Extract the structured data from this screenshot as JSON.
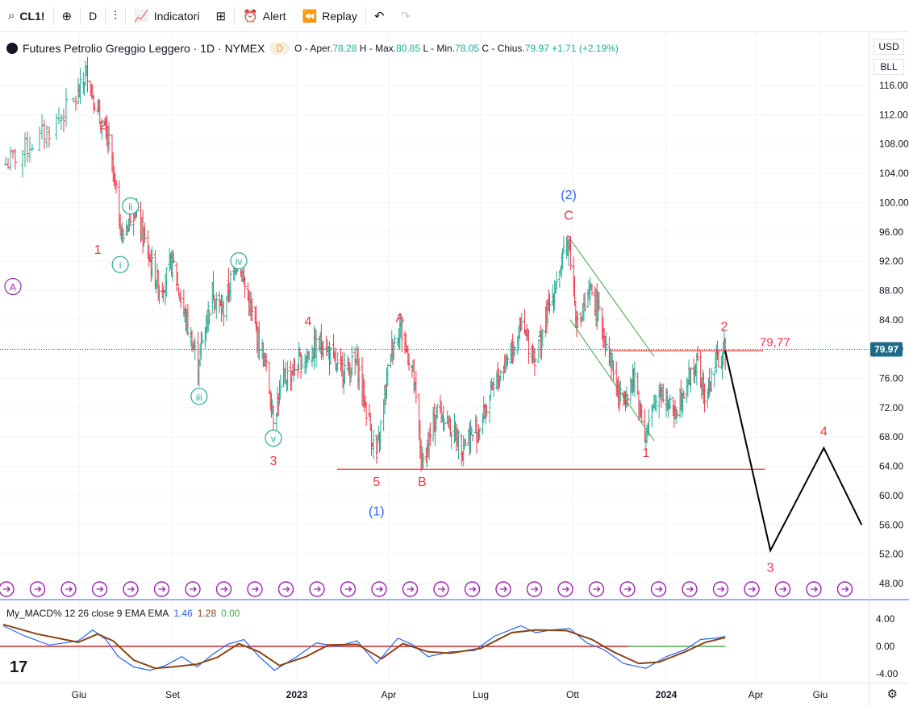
{
  "toolbar": {
    "symbol": "CL1!",
    "interval": "D",
    "indicators_label": "Indicatori",
    "alert_label": "Alert",
    "replay_label": "Replay"
  },
  "legend": {
    "title": "Futures Petrolio Greggio Leggero · 1D · NYMEX",
    "badge": "D",
    "o_label": "O - Aper.",
    "o_value": "78.28",
    "h_label": "H - Max.",
    "h_value": "80.85",
    "l_label": "L - Min.",
    "l_value": "78.05",
    "c_label": "C - Chius.",
    "c_value": "79.97",
    "change": "+1.71 (+2.19%)"
  },
  "scale": {
    "currency": "USD",
    "unit": "BLL"
  },
  "macd_legend": {
    "name": "My_MACD% 12 26 close 9 EMA EMA",
    "v1": "1.46",
    "v2": "1.28",
    "v3": "0.00"
  },
  "chart_data": {
    "type": "candlestick",
    "price_axis": {
      "ticks": [
        116,
        112,
        108,
        104,
        100,
        96,
        92,
        88,
        84,
        80,
        76,
        72,
        68,
        64,
        60,
        56,
        52,
        48
      ],
      "tick_labels": [
        "116.00",
        "112.00",
        "108.00",
        "104.00",
        "100.00",
        "96.00",
        "92.00",
        "88.00",
        "84.00",
        "80.00",
        "76.00",
        "72.00",
        "68.00",
        "64.00",
        "60.00",
        "56.00",
        "52.00",
        "48.00"
      ],
      "last_price_label": "79.97",
      "ylim": [
        45,
        120
      ]
    },
    "time_axis": {
      "labels": [
        "Giu",
        "Set",
        "2023",
        "Apr",
        "Lug",
        "Ott",
        "2024",
        "Apr",
        "Giu"
      ]
    },
    "price_series": [
      [
        "2022-05-01",
        105
      ],
      [
        "2022-05-20",
        110
      ],
      [
        "2022-06-10",
        118
      ],
      [
        "2022-06-20",
        112
      ],
      [
        "2022-07-01",
        108
      ],
      [
        "2022-07-14",
        95
      ],
      [
        "2022-07-25",
        100
      ],
      [
        "2022-08-10",
        92
      ],
      [
        "2022-08-20",
        88
      ],
      [
        "2022-09-01",
        92
      ],
      [
        "2022-09-10",
        86
      ],
      [
        "2022-09-26",
        78
      ],
      [
        "2022-10-10",
        88
      ],
      [
        "2022-10-20",
        85
      ],
      [
        "2022-11-04",
        93
      ],
      [
        "2022-11-15",
        86
      ],
      [
        "2022-12-01",
        78
      ],
      [
        "2022-12-09",
        71
      ],
      [
        "2022-12-20",
        76
      ],
      [
        "2023-01-10",
        79
      ],
      [
        "2023-01-27",
        81
      ],
      [
        "2023-02-10",
        77
      ],
      [
        "2023-03-01",
        78
      ],
      [
        "2023-03-20",
        65
      ],
      [
        "2023-04-03",
        80
      ],
      [
        "2023-04-12",
        83
      ],
      [
        "2023-04-25",
        77
      ],
      [
        "2023-05-04",
        64
      ],
      [
        "2023-05-20",
        72
      ],
      [
        "2023-06-12",
        67
      ],
      [
        "2023-06-28",
        69
      ],
      [
        "2023-07-15",
        75
      ],
      [
        "2023-08-10",
        83
      ],
      [
        "2023-08-25",
        79
      ],
      [
        "2023-09-10",
        87
      ],
      [
        "2023-09-27",
        95
      ],
      [
        "2023-10-06",
        83
      ],
      [
        "2023-10-20",
        88
      ],
      [
        "2023-11-05",
        80
      ],
      [
        "2023-11-16",
        73
      ],
      [
        "2023-12-01",
        76
      ],
      [
        "2023-12-12",
        68
      ],
      [
        "2023-12-26",
        75
      ],
      [
        "2024-01-08",
        71
      ],
      [
        "2024-01-20",
        75
      ],
      [
        "2024-02-01",
        78
      ],
      [
        "2024-02-10",
        73
      ],
      [
        "2024-02-20",
        78
      ],
      [
        "2024-03-01",
        79.97
      ]
    ],
    "projection": [
      [
        "2024-03-01",
        79.77
      ],
      [
        "2024-04-15",
        52.5
      ],
      [
        "2024-06-05",
        66.5
      ],
      [
        "2024-07-10",
        56
      ]
    ],
    "support_line": {
      "price": 63.6,
      "from": "2023-01-01",
      "to": "2024-04-10"
    },
    "resistance_line": {
      "price": 79.77,
      "label": "79,77",
      "from": "2023-11-01",
      "to": "2024-03-15"
    },
    "wave_labels": [
      {
        "text": "2",
        "date": "2022-06-25",
        "price": 110,
        "color": "red"
      },
      {
        "text": "1",
        "date": "2022-06-20",
        "price": 93,
        "color": "red"
      },
      {
        "text": "A",
        "date": "2022-05-05",
        "price": 88,
        "color": "purple",
        "circled": true
      },
      {
        "text": "i",
        "date": "2022-07-12",
        "price": 91,
        "color": "teal",
        "circled": true
      },
      {
        "text": "ii",
        "date": "2022-07-22",
        "price": 99,
        "color": "teal",
        "circled": true
      },
      {
        "text": "iii",
        "date": "2022-09-27",
        "price": 73,
        "color": "teal",
        "circled": true
      },
      {
        "text": "iv",
        "date": "2022-11-05",
        "price": 91.5,
        "color": "teal",
        "circled": true
      },
      {
        "text": "v",
        "date": "2022-12-09",
        "price": 67.3,
        "color": "teal",
        "circled": true
      },
      {
        "text": "3",
        "date": "2022-12-09",
        "price": 64.2,
        "color": "red"
      },
      {
        "text": "4",
        "date": "2023-01-12",
        "price": 83.2,
        "color": "red"
      },
      {
        "text": "5",
        "date": "2023-03-20",
        "price": 61.3,
        "color": "red"
      },
      {
        "text": "(1)",
        "date": "2023-03-20",
        "price": 57.3,
        "color": "blue"
      },
      {
        "text": "A",
        "date": "2023-04-12",
        "price": 83.7,
        "color": "red"
      },
      {
        "text": "B",
        "date": "2023-05-04",
        "price": 61.3,
        "color": "red"
      },
      {
        "text": "(2)",
        "date": "2023-09-27",
        "price": 100.5,
        "color": "blue"
      },
      {
        "text": "C",
        "date": "2023-09-27",
        "price": 97.7,
        "color": "red"
      },
      {
        "text": "1",
        "date": "2023-12-12",
        "price": 65.3,
        "color": "red"
      },
      {
        "text": "2",
        "date": "2024-02-29",
        "price": 82.5,
        "color": "red"
      },
      {
        "text": "3",
        "date": "2024-04-15",
        "price": 49.6,
        "color": "red"
      },
      {
        "text": "4",
        "date": "2024-06-05",
        "price": 68.2,
        "color": "red"
      }
    ],
    "macd": {
      "ticks": [
        4,
        0,
        -4
      ],
      "tick_labels": [
        "4.00",
        "0.00",
        "-4.00"
      ],
      "ylim": [
        -5,
        5.5
      ],
      "values": [
        [
          "2022-05-01",
          3.0
        ],
        [
          "2022-05-10",
          1.5
        ],
        [
          "2022-05-20",
          0.2
        ],
        [
          "2022-06-01",
          0.8
        ],
        [
          "2022-06-15",
          2.4
        ],
        [
          "2022-06-28",
          1.0
        ],
        [
          "2022-07-10",
          -1.5
        ],
        [
          "2022-07-25",
          -3.0
        ],
        [
          "2022-08-10",
          -3.5
        ],
        [
          "2022-08-25",
          -2.8
        ],
        [
          "2022-09-10",
          -1.5
        ],
        [
          "2022-09-25",
          -3.0
        ],
        [
          "2022-10-10",
          -1.2
        ],
        [
          "2022-10-25",
          0.3
        ],
        [
          "2022-11-10",
          1.0
        ],
        [
          "2022-11-25",
          -1.5
        ],
        [
          "2022-12-10",
          -3.5
        ],
        [
          "2023-01-01",
          -1.5
        ],
        [
          "2023-01-20",
          0.5
        ],
        [
          "2023-02-10",
          0.0
        ],
        [
          "2023-03-01",
          0.8
        ],
        [
          "2023-03-20",
          -2.5
        ],
        [
          "2023-04-10",
          1.2
        ],
        [
          "2023-04-25",
          0.2
        ],
        [
          "2023-05-10",
          -1.5
        ],
        [
          "2023-06-01",
          -0.8
        ],
        [
          "2023-06-25",
          -0.6
        ],
        [
          "2023-07-15",
          1.5
        ],
        [
          "2023-08-10",
          3.0
        ],
        [
          "2023-08-25",
          2.0
        ],
        [
          "2023-09-10",
          2.4
        ],
        [
          "2023-09-28",
          2.6
        ],
        [
          "2023-10-15",
          0.5
        ],
        [
          "2023-11-01",
          -0.5
        ],
        [
          "2023-11-20",
          -2.5
        ],
        [
          "2023-12-12",
          -3.2
        ],
        [
          "2024-01-01",
          -1.5
        ],
        [
          "2024-01-20",
          -0.5
        ],
        [
          "2024-02-05",
          1.0
        ],
        [
          "2024-02-20",
          1.2
        ],
        [
          "2024-03-01",
          1.46
        ]
      ],
      "signal": [
        [
          "2022-05-01",
          3.2
        ],
        [
          "2022-05-15",
          1.8
        ],
        [
          "2022-06-01",
          0.6
        ],
        [
          "2022-06-20",
          1.8
        ],
        [
          "2022-07-05",
          0.8
        ],
        [
          "2022-07-25",
          -2.0
        ],
        [
          "2022-08-15",
          -3.2
        ],
        [
          "2022-09-01",
          -3.0
        ],
        [
          "2022-09-25",
          -2.6
        ],
        [
          "2022-10-15",
          -1.6
        ],
        [
          "2022-11-05",
          0.4
        ],
        [
          "2022-11-25",
          -0.8
        ],
        [
          "2022-12-15",
          -2.8
        ],
        [
          "2023-01-10",
          -1.5
        ],
        [
          "2023-02-01",
          0.2
        ],
        [
          "2023-03-01",
          0.3
        ],
        [
          "2023-03-25",
          -1.8
        ],
        [
          "2023-04-15",
          0.4
        ],
        [
          "2023-05-10",
          -0.8
        ],
        [
          "2023-06-01",
          -1.0
        ],
        [
          "2023-07-01",
          -0.3
        ],
        [
          "2023-08-01",
          2.0
        ],
        [
          "2023-08-25",
          2.4
        ],
        [
          "2023-09-25",
          2.3
        ],
        [
          "2023-10-20",
          1.0
        ],
        [
          "2023-11-10",
          -0.8
        ],
        [
          "2023-12-05",
          -2.5
        ],
        [
          "2023-12-25",
          -2.3
        ],
        [
          "2024-01-20",
          -0.8
        ],
        [
          "2024-02-10",
          0.6
        ],
        [
          "2024-03-01",
          1.28
        ]
      ]
    }
  },
  "colors": {
    "up": "#22ab94",
    "down": "#f23645",
    "wave_red": "#f23645",
    "wave_blue": "#2962ff",
    "wave_teal": "#22ab94",
    "wave_purple": "#9c27b0",
    "macd_line": "#2962ff",
    "signal_line": "#8b4513",
    "zero_red": "#f23645",
    "zero_green": "#4caf50"
  }
}
